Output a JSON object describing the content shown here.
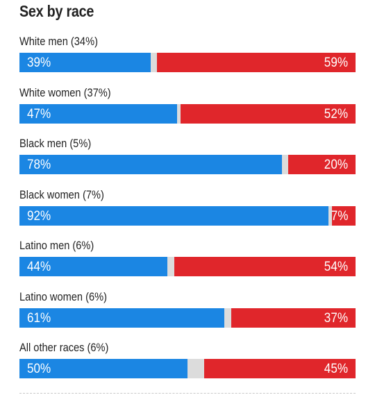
{
  "title": "Sex by race",
  "colors": {
    "dem": "#1b86e3",
    "rep": "#e0262b",
    "other": "#dcdcdc"
  },
  "chart_data": {
    "type": "bar",
    "stacked": true,
    "orientation": "horizontal",
    "title": "Sex by race",
    "xlim": [
      0,
      100
    ],
    "categories": [
      "White men (34%)",
      "White women (37%)",
      "Black men (5%)",
      "Black women (7%)",
      "Latino men (6%)",
      "Latino women (6%)",
      "All other races (6%)"
    ],
    "rows": [
      {
        "label": "White men (34%)",
        "dem": 39,
        "rep": 59,
        "dem_label": "39%",
        "rep_label": "59%"
      },
      {
        "label": "White women (37%)",
        "dem": 47,
        "rep": 52,
        "dem_label": "47%",
        "rep_label": "52%"
      },
      {
        "label": "Black men (5%)",
        "dem": 78,
        "rep": 20,
        "dem_label": "78%",
        "rep_label": "20%"
      },
      {
        "label": "Black women (7%)",
        "dem": 92,
        "rep": 7,
        "dem_label": "92%",
        "rep_label": "7%"
      },
      {
        "label": "Latino men (6%)",
        "dem": 44,
        "rep": 54,
        "dem_label": "44%",
        "rep_label": "54%"
      },
      {
        "label": "Latino women (6%)",
        "dem": 61,
        "rep": 37,
        "dem_label": "61%",
        "rep_label": "37%"
      },
      {
        "label": "All other races (6%)",
        "dem": 50,
        "rep": 45,
        "dem_label": "50%",
        "rep_label": "45%"
      }
    ]
  }
}
